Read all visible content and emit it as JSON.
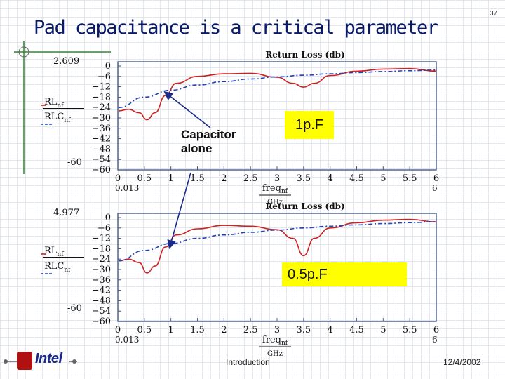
{
  "slide": {
    "title": "Pad capacitance is a critical parameter",
    "page_number": "37",
    "footer": {
      "center": "Introduction",
      "date": "12/4/2002",
      "logo_text": "Intel"
    }
  },
  "annotations": {
    "callout": "Capacitor alone",
    "label_1": "1p.F",
    "label_2": "0.5p.F"
  },
  "colors": {
    "title": "#0a1a6a",
    "axes": "#4a5a8a",
    "red": "#cc2222",
    "blue": "#2244bb",
    "highlight": "#ffff00"
  },
  "chart_data": [
    {
      "type": "line",
      "title": "Return Loss (db)",
      "top_value_label": "2.609",
      "xlabel": "freq_nf",
      "xunit": "GHz",
      "xlim": [
        0,
        6
      ],
      "ylim": [
        -60,
        2.609
      ],
      "x_ticks": [
        "0",
        "0.5",
        "1",
        "1.5",
        "2",
        "2.5",
        "3",
        "3.5",
        "4",
        "4.5",
        "5",
        "5.5",
        "6"
      ],
      "y_ticks": [
        "0",
        "-6",
        "-12",
        "-18",
        "-24",
        "-30",
        "-36",
        "-42",
        "-48",
        "-54",
        "-60"
      ],
      "x_range_labels": [
        "0.013",
        "6"
      ],
      "left_labels": {
        "top": "2.609",
        "bottom": "-60",
        "rl": "RL",
        "rl_sub": "nf",
        "rlc": "RLC",
        "rlc_sub": "nf"
      },
      "series": [
        {
          "name": "RLnf",
          "x": [
            0.013,
            0.2,
            0.4,
            0.55,
            0.7,
            0.9,
            1.1,
            1.5,
            2.0,
            2.5,
            3.0,
            3.3,
            3.5,
            3.7,
            4.0,
            4.5,
            5.0,
            5.5,
            6.0
          ],
          "y": [
            -26,
            -25,
            -27,
            -31,
            -27,
            -17,
            -10,
            -6.0,
            -4.5,
            -4.2,
            -6.5,
            -10,
            -12.2,
            -10,
            -5.5,
            -3.0,
            -1.8,
            -1.5,
            -3.0
          ]
        },
        {
          "name": "RLCnf",
          "x": [
            0.013,
            0.5,
            1,
            1.5,
            2,
            2.5,
            3,
            3.5,
            4,
            4.5,
            5,
            5.5,
            6
          ],
          "y": [
            -24,
            -18,
            -14,
            -11,
            -9,
            -7.5,
            -6.3,
            -5.3,
            -4.5,
            -3.8,
            -3.2,
            -2.7,
            -2.3
          ]
        }
      ]
    },
    {
      "type": "line",
      "title": "Return Loss (db)",
      "top_value_label": "4.977",
      "xlabel": "freq_nf",
      "xunit": "GHz",
      "xlim": [
        0,
        6
      ],
      "ylim": [
        -60,
        4.977
      ],
      "x_ticks": [
        "0",
        "0.5",
        "1",
        "1.5",
        "2",
        "2.5",
        "3",
        "3.5",
        "4",
        "4.5",
        "5",
        "5.5",
        "6"
      ],
      "y_ticks": [
        "0",
        "-6",
        "-12",
        "-18",
        "-24",
        "-30",
        "-36",
        "-42",
        "-48",
        "-54",
        "-60"
      ],
      "x_range_labels": [
        "0.013",
        "6"
      ],
      "left_labels": {
        "top": "4.977",
        "bottom": "-60",
        "rl": "RL",
        "rl_sub": "nf",
        "rlc": "RLC",
        "rlc_sub": "nf"
      },
      "series": [
        {
          "name": "RLnf",
          "x": [
            0.013,
            0.2,
            0.4,
            0.55,
            0.7,
            0.9,
            1.1,
            1.5,
            2.0,
            2.5,
            3.0,
            3.3,
            3.5,
            3.7,
            4.0,
            4.5,
            5.0,
            5.5,
            6.0
          ],
          "y": [
            -25,
            -24,
            -26,
            -32,
            -28,
            -17,
            -10,
            -6.5,
            -4.5,
            -5.0,
            -7.0,
            -12,
            -22,
            -12,
            -6.0,
            -3.0,
            -1.5,
            -1.0,
            -2.5
          ]
        },
        {
          "name": "RLCnf",
          "x": [
            0.013,
            0.5,
            1,
            1.5,
            2,
            2.5,
            3,
            3.5,
            4,
            4.5,
            5,
            5.5,
            6
          ],
          "y": [
            -25,
            -19,
            -15,
            -12,
            -10,
            -8.5,
            -7.2,
            -6.0,
            -5.0,
            -4.2,
            -3.5,
            -2.9,
            -2.4
          ]
        }
      ]
    }
  ]
}
